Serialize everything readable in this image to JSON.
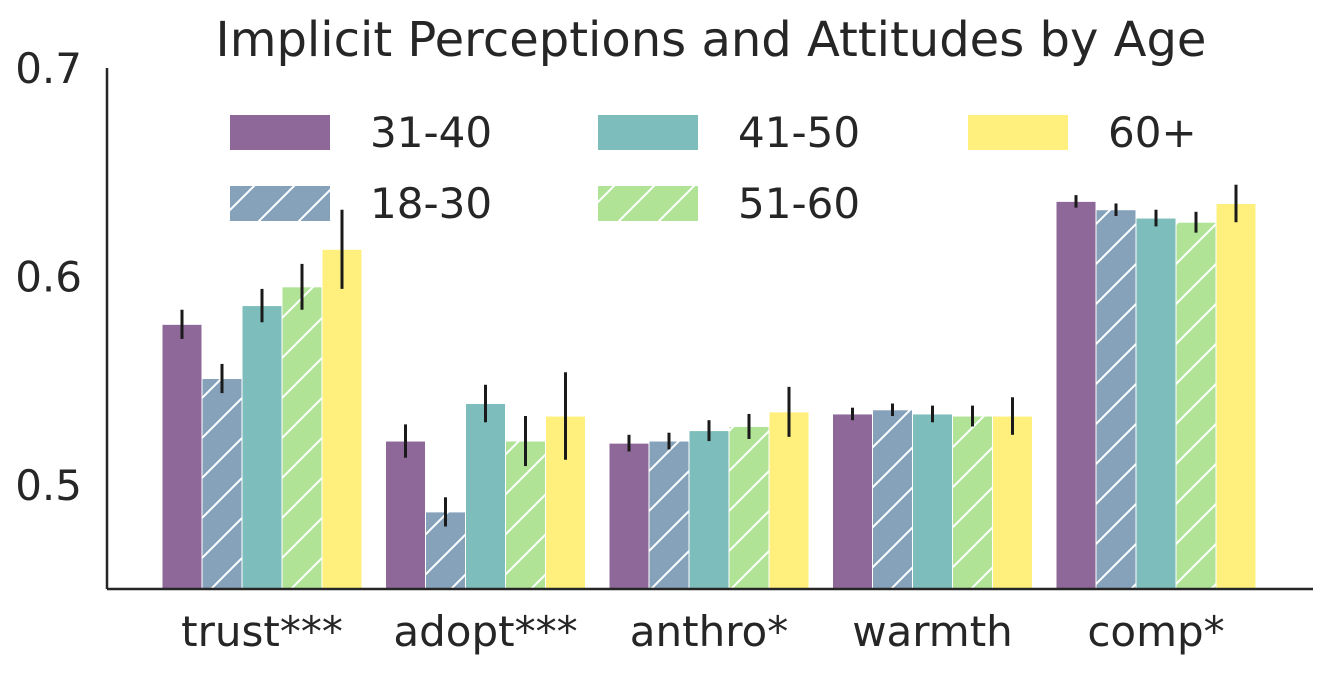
{
  "chart_data": {
    "type": "bar",
    "title": "Implicit Perceptions and Attitudes by Age",
    "xlabel": "",
    "ylabel": "",
    "ylim": [
      0.45,
      0.7
    ],
    "yticks": [
      0.5,
      0.6,
      0.7
    ],
    "ytick_labels": [
      "0.5",
      "0.6",
      "0.7"
    ],
    "categories": [
      "trust***",
      "adopt***",
      "anthro*",
      "warmth",
      "comp*"
    ],
    "series": [
      {
        "name": "31-40",
        "color": "#8e6898",
        "hatch": false,
        "values": [
          0.577,
          0.521,
          0.52,
          0.534,
          0.636
        ],
        "errors": [
          0.007,
          0.008,
          0.004,
          0.003,
          0.003
        ]
      },
      {
        "name": "18-30",
        "color": "#86a2bb",
        "hatch": true,
        "values": [
          0.551,
          0.487,
          0.521,
          0.536,
          0.632
        ],
        "errors": [
          0.007,
          0.007,
          0.004,
          0.003,
          0.003
        ]
      },
      {
        "name": "41-50",
        "color": "#7dbdbb",
        "hatch": false,
        "values": [
          0.586,
          0.539,
          0.526,
          0.534,
          0.628
        ],
        "errors": [
          0.008,
          0.009,
          0.005,
          0.004,
          0.004
        ]
      },
      {
        "name": "51-60",
        "color": "#b0e396",
        "hatch": true,
        "values": [
          0.595,
          0.521,
          0.528,
          0.533,
          0.626
        ],
        "errors": [
          0.011,
          0.012,
          0.006,
          0.005,
          0.005
        ]
      },
      {
        "name": "60+",
        "color": "#fff07e",
        "hatch": false,
        "values": [
          0.613,
          0.533,
          0.535,
          0.533,
          0.635
        ],
        "errors": [
          0.019,
          0.021,
          0.012,
          0.009,
          0.009
        ]
      }
    ],
    "legend": {
      "placement": "top-center",
      "columns": 3,
      "order": [
        "31-40",
        "41-50",
        "60+",
        "18-30",
        "51-60"
      ]
    },
    "grid": false
  }
}
